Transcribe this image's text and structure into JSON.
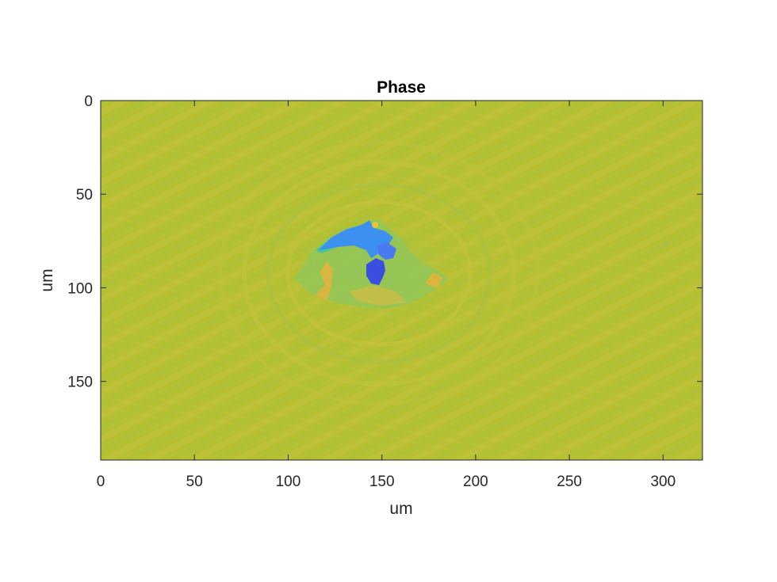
{
  "chart_data": {
    "type": "heatmap",
    "title": "Phase",
    "xlabel": "um",
    "ylabel": "um",
    "xlim": [
      0,
      321
    ],
    "ylim": [
      0,
      192
    ],
    "y_reversed": true,
    "x_ticks": [
      "0",
      "50",
      "100",
      "150",
      "200",
      "250",
      "300"
    ],
    "y_ticks": [
      "0",
      "50",
      "100",
      "150"
    ],
    "x_tick_values": [
      0,
      50,
      100,
      150,
      200,
      250,
      300
    ],
    "y_tick_values": [
      0,
      50,
      100,
      150
    ],
    "colormap": "parula",
    "colors": {
      "background": "#b5c133",
      "fringe_light": "#c9c23a",
      "fringe_dark": "#a9bd38",
      "halo_green": "#8fc45a",
      "cyan": "#38c0a8",
      "blue": "#3d8ff0",
      "deep_blue": "#3a4fe0",
      "orange": "#e8b23c",
      "axis": "#262626"
    },
    "features": [
      {
        "name": "defect-center",
        "x": 148,
        "y": 88
      }
    ]
  }
}
